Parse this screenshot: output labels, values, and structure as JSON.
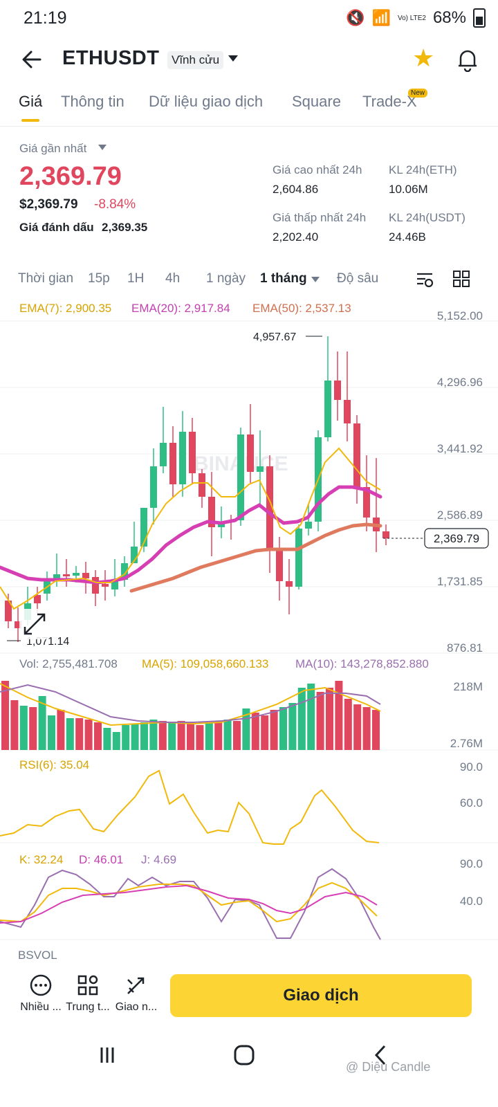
{
  "status": {
    "time": "21:19",
    "battery": "68%",
    "network": "Vo) LTE2"
  },
  "header": {
    "pair": "ETHUSDT",
    "contract_type": "Vĩnh cửu"
  },
  "tabs": [
    {
      "label": "Giá"
    },
    {
      "label": "Thông tin"
    },
    {
      "label": "Dữ liệu giao dịch"
    },
    {
      "label": "Square"
    },
    {
      "label": "Trade-X"
    }
  ],
  "tab_badge": "New",
  "price": {
    "last_label": "Giá gần nhất",
    "last": "2,369.79",
    "usd": "$2,369.79",
    "change": "-8.84%",
    "mark_label": "Giá đánh dấu",
    "mark": "2,369.35",
    "high_label": "Giá cao nhất 24h",
    "high": "2,604.86",
    "low_label": "Giá thấp nhất 24h",
    "low": "2,202.40",
    "vol_eth_label": "KL 24h(ETH)",
    "vol_eth": "10.06M",
    "vol_usdt_label": "KL 24h(USDT)",
    "vol_usdt": "24.46B"
  },
  "timeframes": [
    {
      "label": "Thời gian"
    },
    {
      "label": "15p"
    },
    {
      "label": "1H"
    },
    {
      "label": "4h"
    },
    {
      "label": "1 ngày"
    },
    {
      "label": "1 tháng"
    },
    {
      "label": "Độ sâu"
    }
  ],
  "indicators": {
    "ema7": "EMA(7): 2,900.35",
    "ema20": "EMA(20): 2,917.84",
    "ema50": "EMA(50): 2,537.13",
    "vol": "Vol: 2,755,481.708",
    "ma5": "MA(5): 109,058,660.133",
    "ma10": "MA(10): 143,278,852.880",
    "rsi": "RSI(6): 35.04",
    "k": "K: 32.24",
    "d": "D: 46.01",
    "j": "J: 4.69",
    "bsvol": "BSVOL"
  },
  "chart_labels": {
    "price_axis": [
      "5,152.00",
      "4,296.96",
      "3,441.92",
      "2,586.89",
      "1,731.85",
      "876.81"
    ],
    "current": "2,369.79",
    "high_mark": "4,957.67",
    "low_mark": "1,071.14",
    "vol_axis": [
      "218M",
      "2.76M"
    ],
    "rsi_axis": [
      "90.0",
      "60.0"
    ],
    "kdj_axis": [
      "90.0",
      "40.0"
    ],
    "watermark": "BINANCE"
  },
  "colors": {
    "up": "#2ebd85",
    "down": "#e0475f",
    "ema7": "#f0b90b",
    "ema20": "#d63fb3",
    "ema50": "#e07a5f",
    "accent": "#fcd535"
  },
  "bottom": {
    "more": "Nhiều ...",
    "center": "Trung t...",
    "trade_small": "Giao n...",
    "trade_button": "Giao dịch"
  },
  "footer_watermark": "@ Diệu Candle"
}
